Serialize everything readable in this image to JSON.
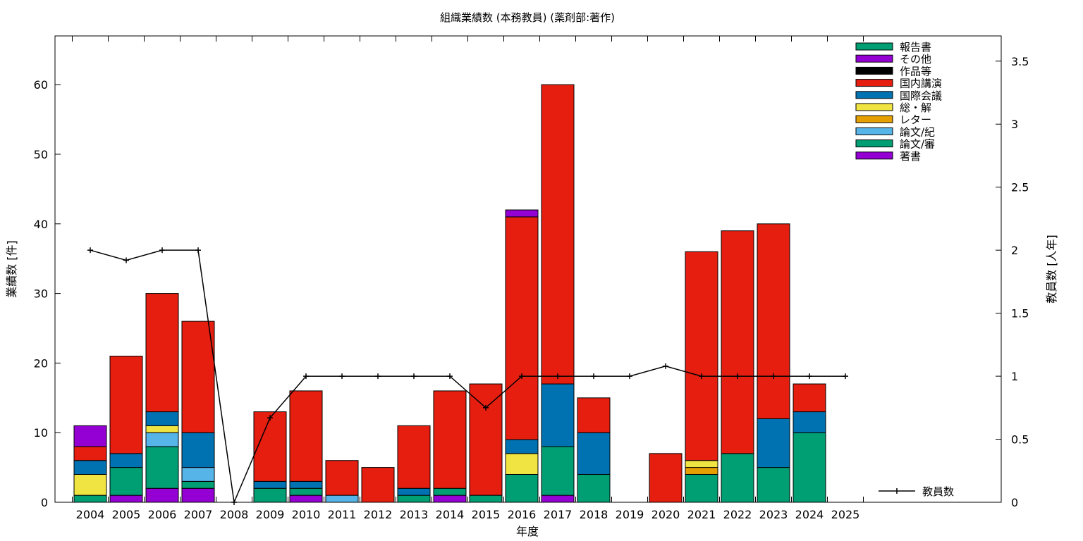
{
  "chart_data": {
    "type": "bar",
    "title": "組織業績数 (本務教員) (薬剤部:著作)",
    "xlabel": "年度",
    "ylabel": "業績数 [件]",
    "y2label": "教員数 [人年]",
    "categories": [
      "2004",
      "2005",
      "2006",
      "2007",
      "2008",
      "2009",
      "2010",
      "2011",
      "2012",
      "2013",
      "2014",
      "2015",
      "2016",
      "2017",
      "2018",
      "2019",
      "2020",
      "2021",
      "2022",
      "2023",
      "2024",
      "2025"
    ],
    "ylim": [
      0,
      67
    ],
    "y2lim": [
      0,
      3.7
    ],
    "yticks": [
      "0",
      "10",
      "20",
      "30",
      "40",
      "50",
      "60"
    ],
    "y2ticks": [
      "0",
      "0.5",
      "1",
      "1.5",
      "2",
      "2.5",
      "3",
      "3.5"
    ],
    "stacked": true,
    "legend_position": "top-right",
    "series": [
      {
        "name": "著書",
        "color": "#9400d3",
        "values": [
          0,
          1,
          2,
          2,
          0,
          0,
          1,
          0,
          0,
          0,
          1,
          0,
          0,
          1,
          0,
          0,
          0,
          0,
          0,
          0,
          0,
          0
        ]
      },
      {
        "name": "論文/審",
        "color": "#009e73",
        "values": [
          1,
          4,
          6,
          1,
          0,
          2,
          1,
          0,
          0,
          1,
          1,
          1,
          4,
          7,
          4,
          0,
          0,
          4,
          7,
          5,
          10,
          0
        ]
      },
      {
        "name": "論文/紀",
        "color": "#56b4e9",
        "values": [
          0,
          0,
          2,
          2,
          0,
          0,
          0,
          1,
          0,
          0,
          0,
          0,
          0,
          0,
          0,
          0,
          0,
          0,
          0,
          0,
          0,
          0
        ]
      },
      {
        "name": "レター",
        "color": "#e69f00",
        "values": [
          0,
          0,
          0,
          0,
          0,
          0,
          0,
          0,
          0,
          0,
          0,
          0,
          0,
          0,
          0,
          0,
          0,
          1,
          0,
          0,
          0,
          0
        ]
      },
      {
        "name": "総・解",
        "color": "#f0e442",
        "values": [
          3,
          0,
          1,
          0,
          0,
          0,
          0,
          0,
          0,
          0,
          0,
          0,
          3,
          0,
          0,
          0,
          0,
          1,
          0,
          0,
          0,
          0
        ]
      },
      {
        "name": "国際会議",
        "color": "#0072b2",
        "values": [
          2,
          2,
          2,
          5,
          0,
          1,
          1,
          0,
          0,
          1,
          0,
          0,
          2,
          9,
          6,
          0,
          0,
          0,
          0,
          7,
          3,
          0
        ]
      },
      {
        "name": "国内講演",
        "color": "#e51e10",
        "values": [
          2,
          14,
          17,
          16,
          0,
          10,
          13,
          5,
          5,
          9,
          14,
          16,
          32,
          43,
          5,
          0,
          7,
          30,
          32,
          28,
          4,
          0
        ]
      },
      {
        "name": "作品等",
        "color": "#000000",
        "values": [
          0,
          0,
          0,
          0,
          0,
          0,
          0,
          0,
          0,
          0,
          0,
          0,
          0,
          0,
          0,
          0,
          0,
          0,
          0,
          0,
          0,
          0
        ]
      },
      {
        "name": "その他",
        "color": "#9400d3",
        "values": [
          3,
          0,
          0,
          0,
          0,
          0,
          0,
          0,
          0,
          0,
          0,
          0,
          1,
          0,
          0,
          0,
          0,
          0,
          0,
          0,
          0,
          0
        ]
      },
      {
        "name": "報告書",
        "color": "#009e73",
        "values": [
          0,
          0,
          0,
          0,
          0,
          0,
          0,
          0,
          0,
          0,
          0,
          0,
          0,
          0,
          0,
          0,
          0,
          0,
          0,
          0,
          0,
          0
        ]
      }
    ],
    "line_series": {
      "name": "教員数",
      "color": "#000000",
      "axis": "y2",
      "values": [
        2,
        1.92,
        2,
        2,
        0,
        0.67,
        1,
        1,
        1,
        1,
        1,
        0.75,
        1,
        1,
        1,
        1,
        1.08,
        1,
        1,
        1,
        1,
        1
      ]
    }
  }
}
